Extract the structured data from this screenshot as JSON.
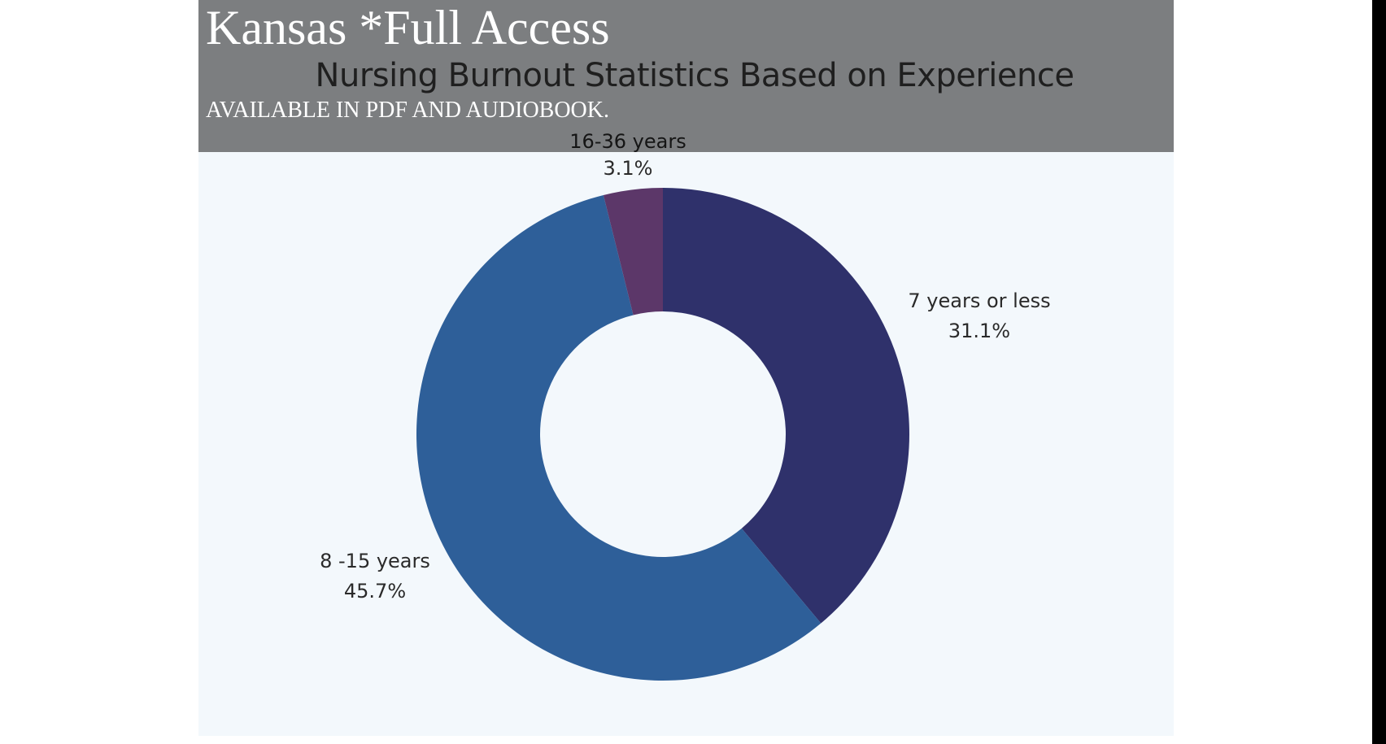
{
  "overlay": {
    "title": "Kansas *Full Access",
    "subtitle": "AVAILABLE IN PDF AND AUDIOBOOK."
  },
  "chart_data": {
    "type": "pie",
    "style": "donut",
    "title": "Nursing Burnout Statistics Based on Experience",
    "slices": [
      {
        "label": "7 years or less",
        "value": 31.1,
        "value_label": "31.1%",
        "color": "#2f316b"
      },
      {
        "label": "8 -15 years",
        "value": 45.7,
        "value_label": "45.7%",
        "color": "#2e5f99"
      },
      {
        "label": "16-36 years",
        "value": 3.1,
        "value_label": "3.1%",
        "color": "#5c3769"
      }
    ],
    "background": "#f3f8fc"
  }
}
